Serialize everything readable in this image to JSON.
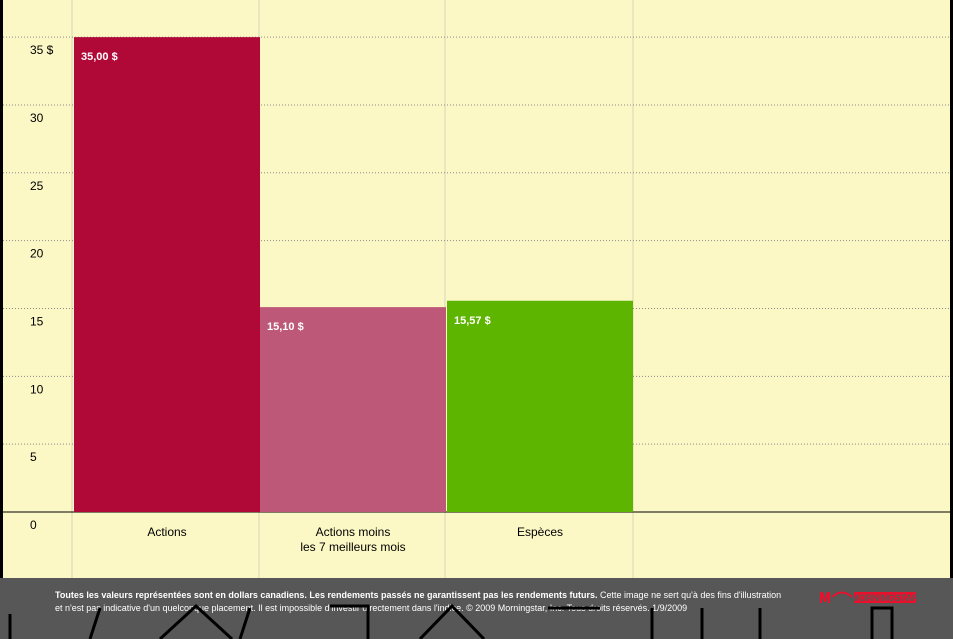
{
  "chart_data": {
    "type": "bar",
    "categories": [
      [
        "Actions"
      ],
      [
        "Actions moins",
        "les 7 meilleurs mois"
      ],
      [
        "Espèces"
      ]
    ],
    "values": [
      35.0,
      15.1,
      15.57
    ],
    "value_labels": [
      "35,00 $",
      "15,10 $",
      "15,57 $"
    ],
    "ylim": [
      0,
      37
    ],
    "yticks": [
      {
        "value": 0,
        "label": "0"
      },
      {
        "value": 5,
        "label": "5"
      },
      {
        "value": 10,
        "label": "10"
      },
      {
        "value": 15,
        "label": "15"
      },
      {
        "value": 20,
        "label": "20"
      },
      {
        "value": 25,
        "label": "25"
      },
      {
        "value": 30,
        "label": "30"
      },
      {
        "value": 35,
        "label": "35 $"
      }
    ],
    "grid": true,
    "colors": {
      "background": "#fbf8c5",
      "bars": [
        "#b00837",
        "#be5878",
        "#5eb500"
      ],
      "grid": "#8a8a8a",
      "footer": "#575757",
      "logo": "#e8102a"
    }
  },
  "footer": {
    "bold_text": "Toutes les valeurs représentées sont en dollars canadiens. Les rendements passés ne garantissent pas les rendements futurs.",
    "text": " Cette image ne sert qu'à des fins d'illustration et n'est pas indicative d'un quelconque placement. Il est impossible d'investir directement dans l'indice. © 2009 Morningstar, Inc. Tous droits réservés. 1/9/2009"
  },
  "logo": {
    "icon": "morningstar-logo",
    "text": "MORNINGSTAR"
  }
}
